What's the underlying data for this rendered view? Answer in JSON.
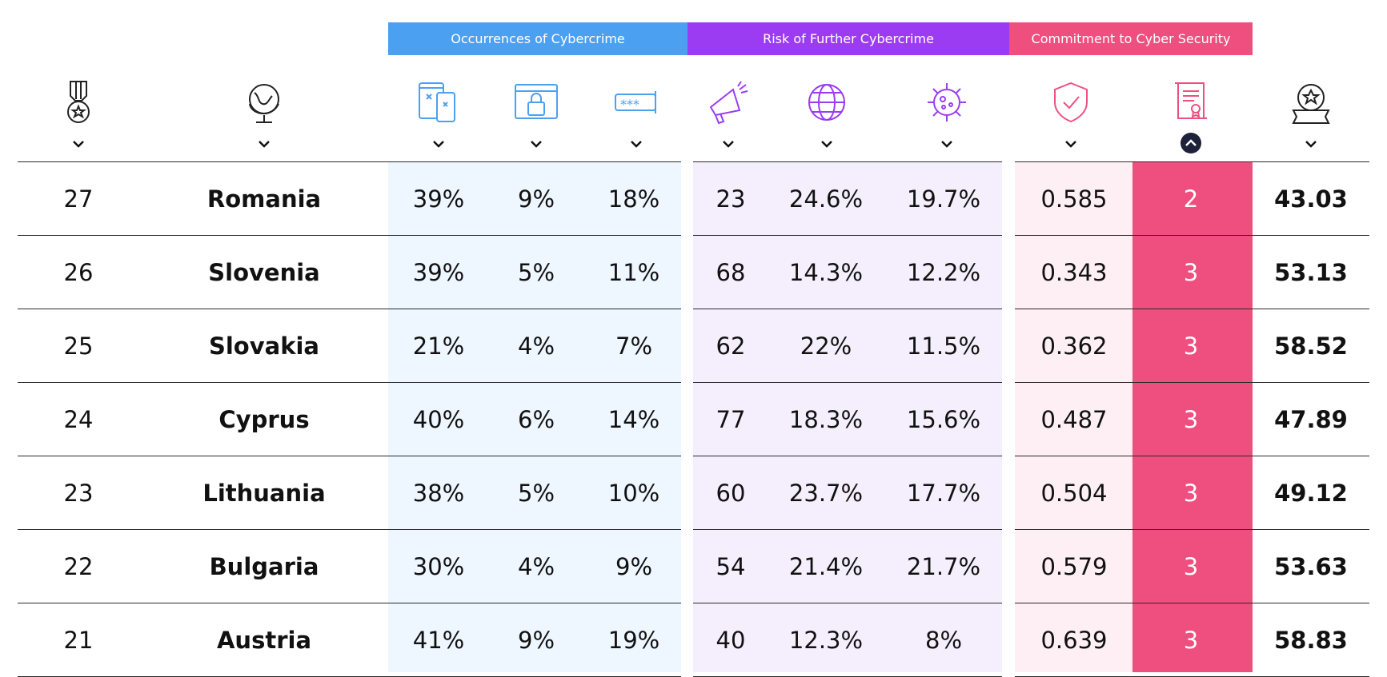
{
  "headers": {
    "occurrences": "Occurrences of Cybercrime",
    "risk": "Risk of Further Cybercrime",
    "commitment": "Commitment to Cyber Security"
  },
  "colors": {
    "blue": "#4ba0f2",
    "blue_light": "#eef6ff",
    "purple": "#9b3cf3",
    "purple_light": "#f5effd",
    "pink": "#ee4f7e",
    "pink_light": "#fdeff3",
    "active_sort": "#1d2139"
  },
  "column_icons": [
    "medal-rank-icon",
    "globe-country-icon",
    "mobile-devices-icon",
    "locked-browser-icon",
    "password-field-icon",
    "megaphone-icon",
    "globe-network-icon",
    "virus-icon",
    "shield-check-icon",
    "certificate-scroll-icon",
    "award-badge-icon"
  ],
  "active_sort_column": 9,
  "rows": [
    {
      "rank": "27",
      "country": "Romania",
      "c1": "39%",
      "c2": "9%",
      "c3": "18%",
      "r1": "23",
      "r2": "24.6%",
      "r3": "19.7%",
      "k1": "0.585",
      "k2": "2",
      "score": "43.03"
    },
    {
      "rank": "26",
      "country": "Slovenia",
      "c1": "39%",
      "c2": "5%",
      "c3": "11%",
      "r1": "68",
      "r2": "14.3%",
      "r3": "12.2%",
      "k1": "0.343",
      "k2": "3",
      "score": "53.13"
    },
    {
      "rank": "25",
      "country": "Slovakia",
      "c1": "21%",
      "c2": "4%",
      "c3": "7%",
      "r1": "62",
      "r2": "22%",
      "r3": "11.5%",
      "k1": "0.362",
      "k2": "3",
      "score": "58.52"
    },
    {
      "rank": "24",
      "country": "Cyprus",
      "c1": "40%",
      "c2": "6%",
      "c3": "14%",
      "r1": "77",
      "r2": "18.3%",
      "r3": "15.6%",
      "k1": "0.487",
      "k2": "3",
      "score": "47.89"
    },
    {
      "rank": "23",
      "country": "Lithuania",
      "c1": "38%",
      "c2": "5%",
      "c3": "10%",
      "r1": "60",
      "r2": "23.7%",
      "r3": "17.7%",
      "k1": "0.504",
      "k2": "3",
      "score": "49.12"
    },
    {
      "rank": "22",
      "country": "Bulgaria",
      "c1": "30%",
      "c2": "4%",
      "c3": "9%",
      "r1": "54",
      "r2": "21.4%",
      "r3": "21.7%",
      "k1": "0.579",
      "k2": "3",
      "score": "53.63"
    },
    {
      "rank": "21",
      "country": "Austria",
      "c1": "41%",
      "c2": "9%",
      "c3": "19%",
      "r1": "40",
      "r2": "12.3%",
      "r3": "8%",
      "k1": "0.639",
      "k2": "3",
      "score": "58.83"
    }
  ]
}
